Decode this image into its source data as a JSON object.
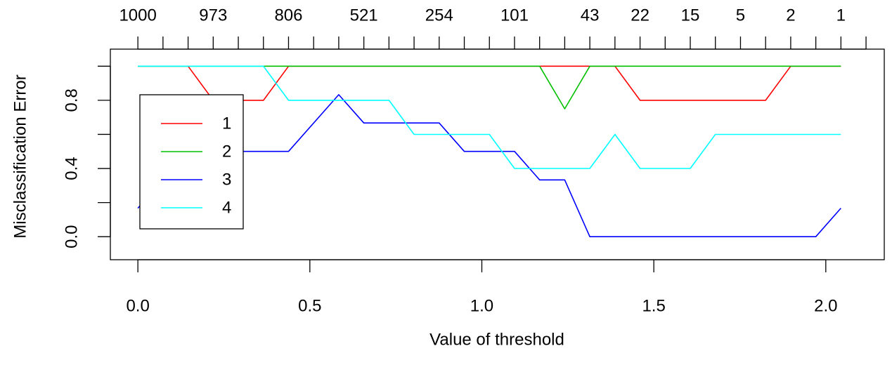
{
  "chart_data": {
    "type": "line",
    "title": "",
    "xlabel": "Value of threshold",
    "ylabel": "Misclassification Error",
    "xlim": [
      -0.08,
      2.17
    ],
    "ylim": [
      -0.135,
      1.1
    ],
    "grid": false,
    "legend_position": "left",
    "x_ticks": [
      0.0,
      0.5,
      1.0,
      1.5,
      2.0
    ],
    "x_tick_labels": [
      "0.0",
      "0.5",
      "1.0",
      "1.5",
      "2.0"
    ],
    "y_ticks": [
      0.0,
      0.2,
      0.4,
      0.6,
      0.8,
      1.0
    ],
    "y_tick_labels": [
      "0.0",
      "",
      "0.4",
      "",
      "0.8",
      ""
    ],
    "top_axis": {
      "ticks": [
        0.0,
        0.073,
        0.146,
        0.219,
        0.292,
        0.365,
        0.438,
        0.511,
        0.584,
        0.657,
        0.73,
        0.803,
        0.876,
        0.949,
        1.022,
        1.095,
        1.168,
        1.241,
        1.314,
        1.387,
        1.46,
        1.533,
        1.606,
        1.679,
        1.752,
        1.825,
        1.898,
        1.971,
        2.044,
        2.117
      ],
      "labels": [
        {
          "x": 0.0,
          "text": "1000"
        },
        {
          "x": 0.219,
          "text": "973"
        },
        {
          "x": 0.438,
          "text": "806"
        },
        {
          "x": 0.657,
          "text": "521"
        },
        {
          "x": 0.876,
          "text": "254"
        },
        {
          "x": 1.095,
          "text": "101"
        },
        {
          "x": 1.314,
          "text": "43"
        },
        {
          "x": 1.46,
          "text": "22"
        },
        {
          "x": 1.606,
          "text": "15"
        },
        {
          "x": 1.752,
          "text": "5"
        },
        {
          "x": 1.898,
          "text": "2"
        },
        {
          "x": 2.044,
          "text": "1"
        }
      ]
    },
    "series": [
      {
        "name": "1",
        "color": "#ff0000",
        "x": [
          0,
          0.146,
          0.219,
          0.365,
          0.438,
          1.168,
          1.241,
          1.314,
          1.387,
          1.46,
          1.825,
          1.898,
          2.044
        ],
        "y": [
          1,
          1,
          0.8,
          0.8,
          1,
          1,
          1,
          1,
          1,
          0.8,
          0.8,
          1,
          1
        ]
      },
      {
        "name": "2",
        "color": "#00c000",
        "x": [
          0,
          0.365,
          0.438,
          1.168,
          1.241,
          1.314,
          2.044
        ],
        "y": [
          1,
          1,
          1,
          1,
          0.75,
          1,
          1
        ]
      },
      {
        "name": "3",
        "color": "#0000ff",
        "x": [
          0,
          0.146,
          0.438,
          0.584,
          0.657,
          0.876,
          0.949,
          1.095,
          1.168,
          1.241,
          1.314,
          1.971,
          2.044
        ],
        "y": [
          0.167,
          0.5,
          0.5,
          0.833,
          0.667,
          0.667,
          0.5,
          0.5,
          0.333,
          0.333,
          0,
          0,
          0.167
        ]
      },
      {
        "name": "4",
        "color": "#00ffff",
        "x": [
          0,
          0.365,
          0.438,
          0.73,
          0.803,
          1.022,
          1.095,
          1.314,
          1.387,
          1.46,
          1.606,
          1.679,
          2.044
        ],
        "y": [
          1,
          1,
          0.8,
          0.8,
          0.6,
          0.6,
          0.4,
          0.4,
          0.6,
          0.4,
          0.4,
          0.6,
          0.6
        ]
      }
    ]
  }
}
